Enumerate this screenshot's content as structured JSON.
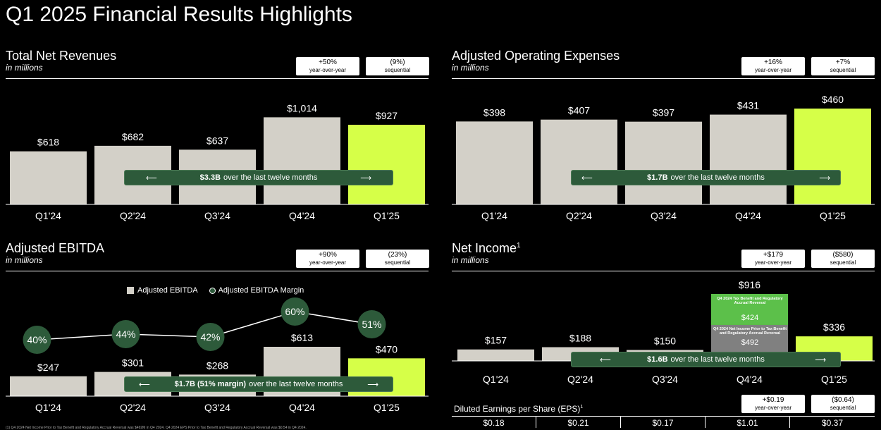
{
  "title": "Q1 2025 Financial Results Highlights",
  "footnote": "(1) Q4 2024 Net Income Prior to Tax Benefit and Regulatory Accrual Reversal was $492M in Q4 2024. Q4 2024 EPS Prior to Tax Benefit and Regulatory Accrual Reversal was $0.54 in Q4 2024.",
  "colors": {
    "bar": "#d3d0c8",
    "highlight": "#d6ff48",
    "banner": "#2d5a3a",
    "segment_green": "#5cc04a",
    "segment_gray": "#808080"
  },
  "revenue": {
    "title": "Total Net Revenues",
    "subtitle": "in millions",
    "pills": [
      {
        "value": "+50%",
        "label": "year-over-year"
      },
      {
        "value": "(9%)",
        "label": "sequential"
      }
    ],
    "banner": {
      "bold": "$3.3B",
      "text": "over the last twelve months"
    }
  },
  "opex": {
    "title": "Adjusted Operating Expenses",
    "subtitle": "in millions",
    "pills": [
      {
        "value": "+16%",
        "label": "year-over-year"
      },
      {
        "value": "+7%",
        "label": "sequential"
      }
    ],
    "banner": {
      "bold": "$1.7B",
      "text": "over the last twelve months"
    }
  },
  "ebitda": {
    "title": "Adjusted EBITDA",
    "subtitle": "in millions",
    "pills": [
      {
        "value": "+90%",
        "label": "year-over-year"
      },
      {
        "value": "(23%)",
        "label": "sequential"
      }
    ],
    "legend_bar": "Adjusted EBITDA",
    "legend_line": "Adjusted EBITDA Margin",
    "banner": {
      "bold": "$1.7B (51% margin)",
      "text": "over the last twelve months"
    }
  },
  "netincome": {
    "title": "Net Income",
    "title_sup": "1",
    "subtitle": "in millions",
    "pills": [
      {
        "value": "+$179",
        "label": "year-over-year"
      },
      {
        "value": "($580)",
        "label": "sequential"
      }
    ],
    "segment_top_label": "Q4 2024 Tax Benefit and Regulatory Accrual Reversal",
    "segment_top_value": "$424",
    "segment_bottom_label": "Q4 2024 Net Income Prior to Tax Benefit and Regulatory Accrual Reversal",
    "segment_bottom_value": "$492",
    "banner": {
      "bold": "$1.6B",
      "text": "over the last twelve months"
    }
  },
  "eps": {
    "title": "Diluted Earnings per Share (EPS)",
    "title_sup": "1",
    "pills": [
      {
        "value": "+$0.19",
        "label": "year-over-year"
      },
      {
        "value": "($0.64)",
        "label": "sequential"
      }
    ],
    "values": [
      "$0.18",
      "$0.21",
      "$0.17",
      "$1.01",
      "$0.37"
    ]
  },
  "chart_data": [
    {
      "type": "bar",
      "title": "Total Net Revenues",
      "ylabel": "in millions",
      "categories": [
        "Q1'24",
        "Q2'24",
        "Q3'24",
        "Q4'24",
        "Q1'25"
      ],
      "values": [
        618,
        682,
        637,
        1014,
        927
      ],
      "value_labels": [
        "$618",
        "$682",
        "$637",
        "$1,014",
        "$927"
      ],
      "highlight_index": 4,
      "ylim": [
        0,
        1050
      ]
    },
    {
      "type": "bar",
      "title": "Adjusted Operating Expenses",
      "ylabel": "in millions",
      "categories": [
        "Q1'24",
        "Q2'24",
        "Q3'24",
        "Q4'24",
        "Q1'25"
      ],
      "values": [
        398,
        407,
        397,
        431,
        460
      ],
      "value_labels": [
        "$398",
        "$407",
        "$397",
        "$431",
        "$460"
      ],
      "highlight_index": 4,
      "ylim": [
        0,
        460
      ]
    },
    {
      "type": "bar",
      "title": "Adjusted EBITDA",
      "ylabel": "in millions",
      "categories": [
        "Q1'24",
        "Q2'24",
        "Q3'24",
        "Q4'24",
        "Q1'25"
      ],
      "series": [
        {
          "name": "Adjusted EBITDA",
          "values": [
            247,
            301,
            268,
            613,
            470
          ]
        },
        {
          "name": "Adjusted EBITDA Margin",
          "values": [
            40,
            44,
            42,
            60,
            51
          ]
        }
      ],
      "value_labels": [
        "$247",
        "$301",
        "$268",
        "$613",
        "$470"
      ],
      "margin_labels": [
        "40%",
        "44%",
        "42%",
        "60%",
        "51%"
      ],
      "highlight_index": 4,
      "ylim": [
        0,
        613
      ],
      "ylim_margin": [
        40,
        60
      ]
    },
    {
      "type": "bar",
      "title": "Net Income",
      "ylabel": "in millions",
      "categories": [
        "Q1'24",
        "Q2'24",
        "Q3'24",
        "Q4'24",
        "Q1'25"
      ],
      "values": [
        157,
        188,
        150,
        916,
        336
      ],
      "value_labels": [
        "$157",
        "$188",
        "$150",
        "$916",
        "$336"
      ],
      "q4_segments": [
        492,
        424
      ],
      "highlight_index": 4,
      "ylim": [
        0,
        916
      ]
    }
  ]
}
